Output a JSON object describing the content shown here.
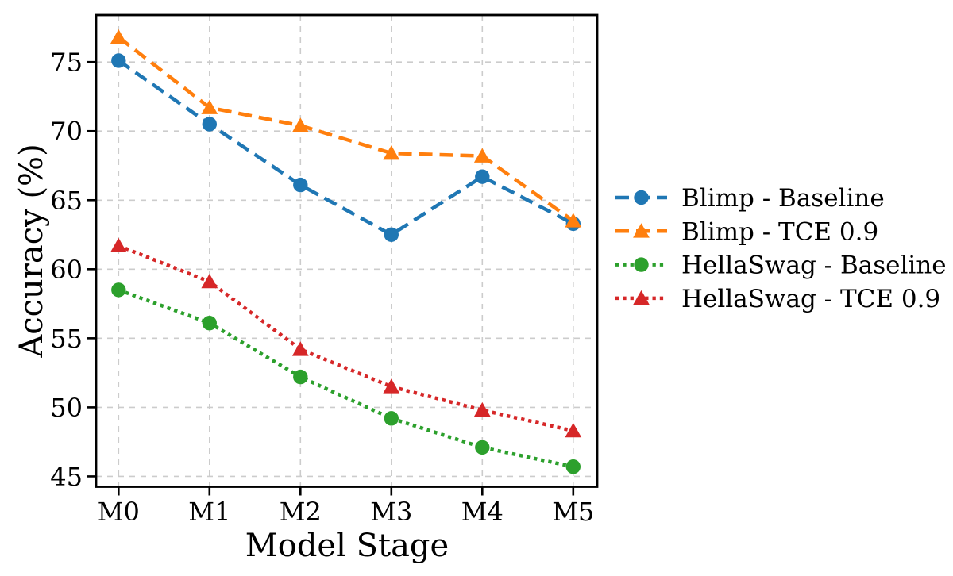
{
  "chart_data": {
    "type": "line",
    "title": "",
    "xlabel": "Model Stage",
    "ylabel": "Accuracy (%)",
    "categories": [
      "M0",
      "M1",
      "M2",
      "M3",
      "M4",
      "M5"
    ],
    "yticks": [
      45,
      50,
      55,
      60,
      65,
      70,
      75
    ],
    "ylim": [
      44.25,
      78.4
    ],
    "grid": true,
    "legend": {
      "position": "center-right-outside",
      "frame": false,
      "entries": [
        "Blimp - Baseline",
        "Blimp - TCE 0.9",
        "HellaSwag - Baseline",
        "HellaSwag - TCE 0.9"
      ]
    },
    "series": [
      {
        "name": "Blimp - Baseline",
        "color": "#1f77b4",
        "linestyle": "dashed",
        "marker": "circle",
        "values": [
          75.1,
          70.5,
          66.1,
          62.5,
          66.7,
          63.3
        ]
      },
      {
        "name": "Blimp - TCE 0.9",
        "color": "#ff7f0e",
        "linestyle": "dashed",
        "marker": "triangle",
        "values": [
          76.8,
          71.7,
          70.4,
          68.4,
          68.2,
          63.5
        ]
      },
      {
        "name": "HellaSwag - Baseline",
        "color": "#2ca02c",
        "linestyle": "dotted",
        "marker": "circle",
        "values": [
          58.5,
          56.1,
          52.2,
          49.2,
          47.1,
          45.7
        ]
      },
      {
        "name": "HellaSwag - TCE 0.9",
        "color": "#d62728",
        "linestyle": "dotted",
        "marker": "triangle",
        "values": [
          61.7,
          59.1,
          54.2,
          51.5,
          49.8,
          48.3
        ]
      }
    ],
    "colors": {
      "grid": "#cccccc",
      "axis": "#000000",
      "text": "#000000",
      "background": "#ffffff"
    }
  }
}
